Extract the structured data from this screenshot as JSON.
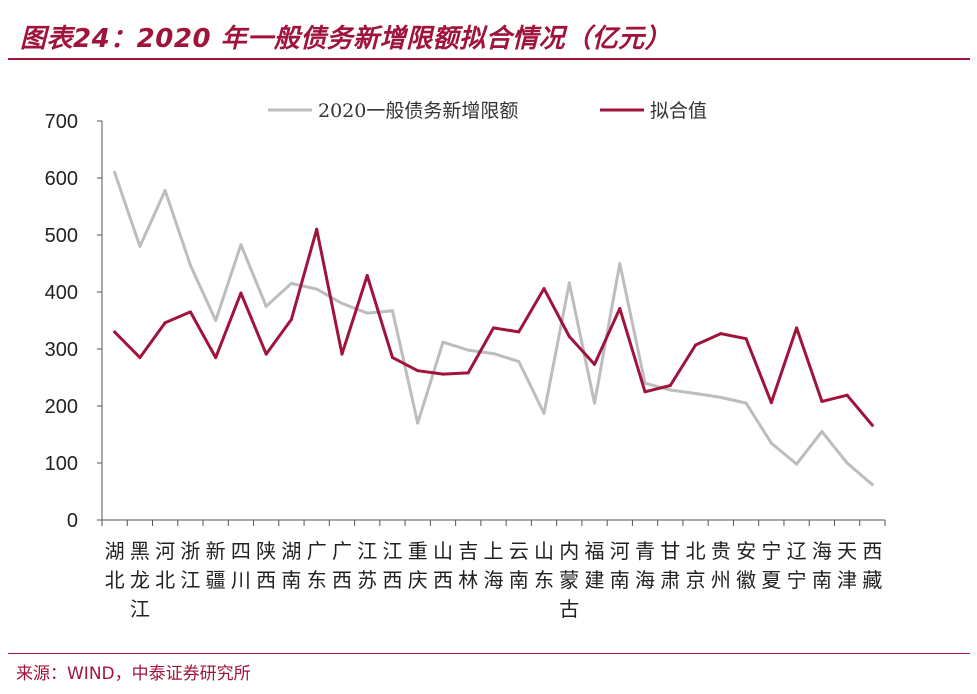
{
  "header": {
    "title": "图表24：2020 年一般债务新增限额拟合情况（亿元）"
  },
  "footer": {
    "source": "来源：WIND，中泰证券研究所"
  },
  "colors": {
    "brand": "#a0143c",
    "series_actual": "#bdbdbd",
    "series_fit": "#a0143c"
  },
  "chart_data": {
    "type": "line",
    "title": "图表24：2020 年一般债务新增限额拟合情况（亿元）",
    "xlabel": "",
    "ylabel": "",
    "ylim": [
      0,
      700
    ],
    "yticks": [
      0,
      100,
      200,
      300,
      400,
      500,
      600,
      700
    ],
    "grid": false,
    "legend_position": "top",
    "categories": [
      "湖北",
      "黑龙江",
      "河北",
      "浙江",
      "新疆",
      "四川",
      "陕西",
      "湖南",
      "广东",
      "广西",
      "江苏",
      "江西",
      "重庆",
      "山西",
      "吉林",
      "上海",
      "云南",
      "山东",
      "内蒙古",
      "福建",
      "河南",
      "青海",
      "甘肃",
      "北京",
      "贵州",
      "安徽",
      "宁夏",
      "辽宁",
      "海南",
      "天津",
      "西藏"
    ],
    "series": [
      {
        "name": "2020一般债务新增限额",
        "color": "#bdbdbd",
        "values": [
          610,
          480,
          578,
          447,
          350,
          483,
          375,
          415,
          405,
          380,
          363,
          367,
          170,
          312,
          298,
          292,
          278,
          187,
          416,
          205,
          450,
          240,
          228,
          222,
          215,
          205,
          135,
          98,
          155,
          100,
          62
        ]
      },
      {
        "name": "拟合值",
        "color": "#a0143c",
        "values": [
          330,
          285,
          346,
          365,
          285,
          398,
          291,
          352,
          510,
          291,
          429,
          285,
          262,
          256,
          258,
          337,
          330,
          406,
          322,
          273,
          371,
          225,
          236,
          307,
          327,
          318,
          206,
          337,
          208,
          219,
          166
        ]
      }
    ]
  }
}
